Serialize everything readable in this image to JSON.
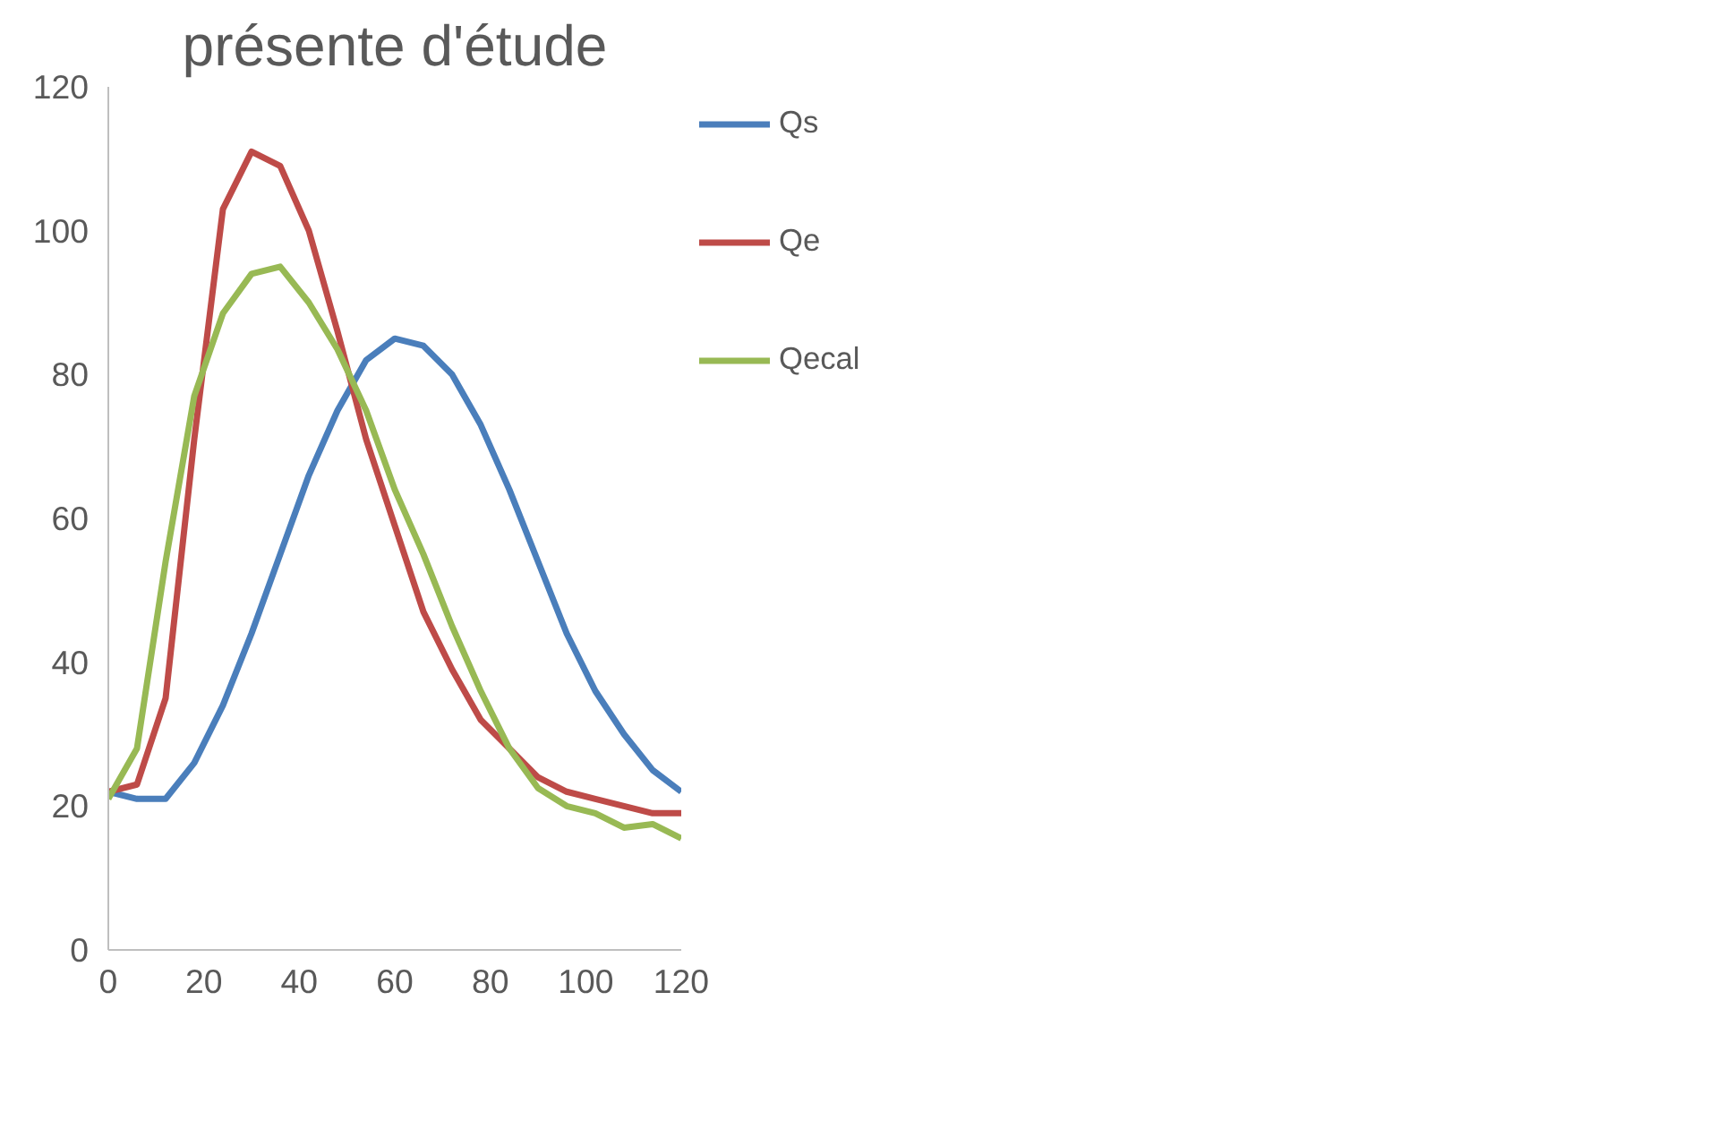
{
  "chart_data": {
    "type": "line",
    "title": "présente d'étude",
    "x": [
      0,
      6,
      12,
      18,
      24,
      30,
      36,
      42,
      48,
      54,
      60,
      66,
      72,
      78,
      84,
      90,
      96,
      102,
      108,
      114,
      120
    ],
    "series": [
      {
        "name": "Qs",
        "color": "#4a7ebb",
        "values": [
          22,
          21,
          21,
          26,
          34,
          44,
          55,
          66,
          75,
          82,
          85,
          84,
          80,
          73,
          64,
          54,
          44,
          36,
          30,
          25,
          22
        ]
      },
      {
        "name": "Qe",
        "color": "#be4b48",
        "values": [
          22,
          23,
          35,
          71,
          103,
          111,
          109,
          100,
          86,
          71,
          59,
          47,
          39,
          32,
          28,
          24,
          22,
          21,
          20,
          19,
          19
        ]
      },
      {
        "name": "Qecal",
        "color": "#98b954",
        "values": [
          21,
          28,
          54,
          77,
          88.5,
          94,
          95,
          90,
          83.5,
          75,
          64,
          55,
          45,
          36,
          28,
          22.5,
          20,
          19,
          17,
          17.5,
          15.5
        ]
      }
    ],
    "xlim": [
      0,
      120
    ],
    "ylim": [
      0,
      120
    ],
    "xticks": [
      0,
      20,
      40,
      60,
      80,
      100,
      120
    ],
    "yticks": [
      0,
      20,
      40,
      60,
      80,
      100,
      120
    ],
    "grid": false,
    "legend": "top right",
    "marker": "none",
    "line_style": "solid"
  }
}
